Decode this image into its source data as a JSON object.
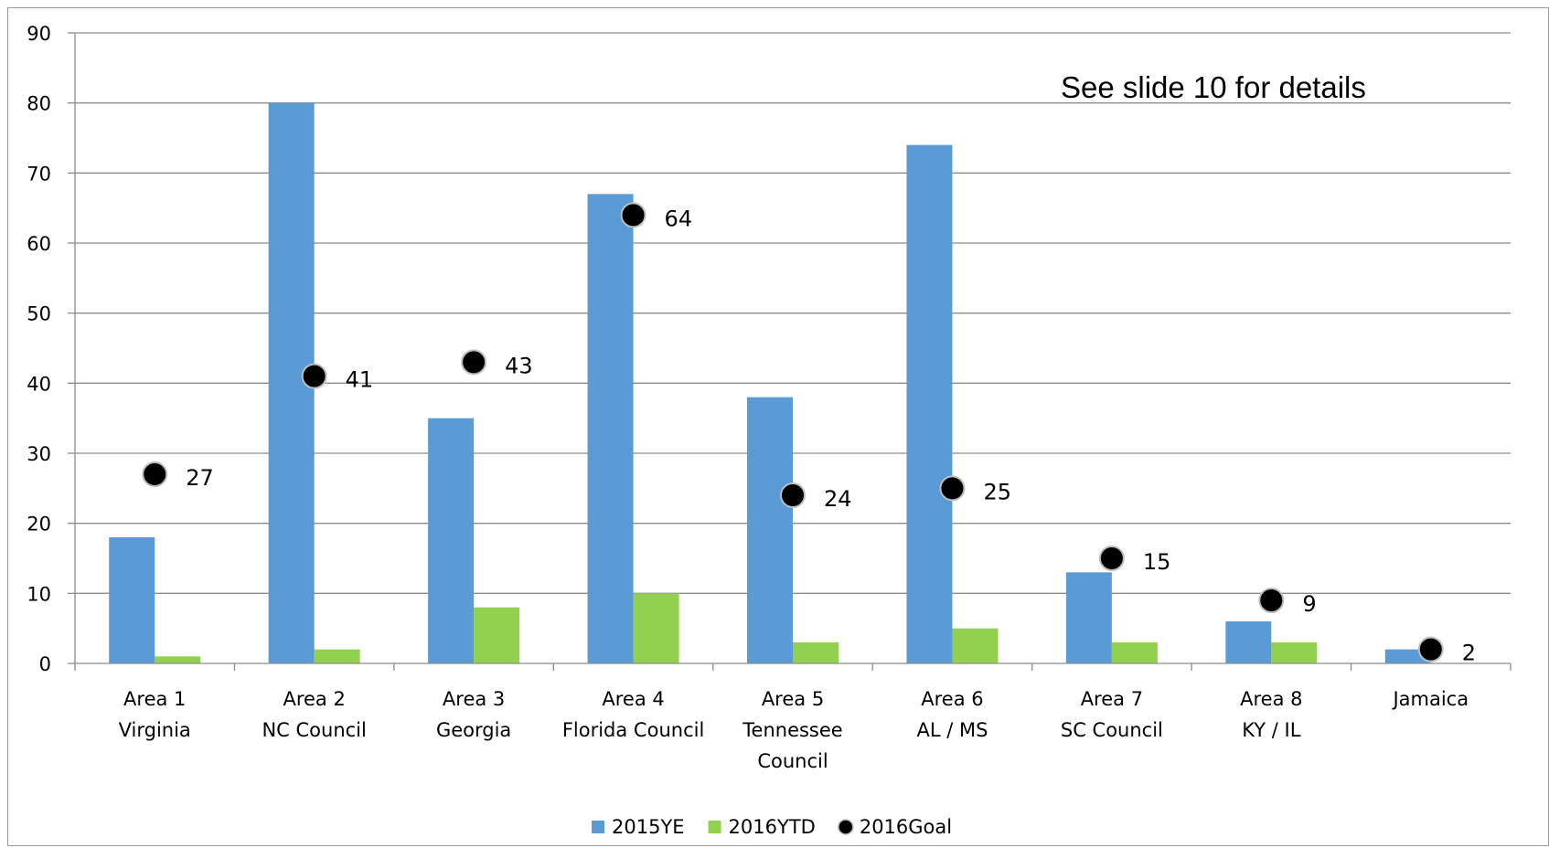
{
  "chart_data": {
    "type": "bar",
    "categories": [
      [
        "Area 1",
        "Virginia"
      ],
      [
        "Area 2",
        "NC Council"
      ],
      [
        "Area 3",
        "Georgia"
      ],
      [
        "Area 4",
        "Florida Council"
      ],
      [
        "Area 5",
        "Tennessee",
        "Council"
      ],
      [
        "Area 6",
        "AL / MS"
      ],
      [
        "Area 7",
        "SC Council"
      ],
      [
        "Area 8",
        "KY / IL"
      ],
      [
        "Jamaica"
      ]
    ],
    "series": [
      {
        "name": "2015YE",
        "kind": "bar",
        "color": "#5b9bd5",
        "values": [
          18,
          80,
          35,
          67,
          38,
          74,
          13,
          6,
          2
        ]
      },
      {
        "name": "2016YTD",
        "kind": "bar",
        "color": "#92d050",
        "values": [
          1,
          2,
          8,
          10,
          3,
          5,
          3,
          3,
          0
        ]
      },
      {
        "name": "2016Goal",
        "kind": "marker",
        "color": "#000000",
        "values": [
          27,
          41,
          43,
          64,
          24,
          25,
          15,
          9,
          2
        ],
        "data_labels": true
      }
    ],
    "ylim": [
      0,
      90
    ],
    "yticks": [
      0,
      10,
      20,
      30,
      40,
      50,
      60,
      70,
      80,
      90
    ],
    "grid": true,
    "legend_position": "bottom",
    "annotation": "See slide 10 for details",
    "title": "",
    "xlabel": "",
    "ylabel": ""
  }
}
